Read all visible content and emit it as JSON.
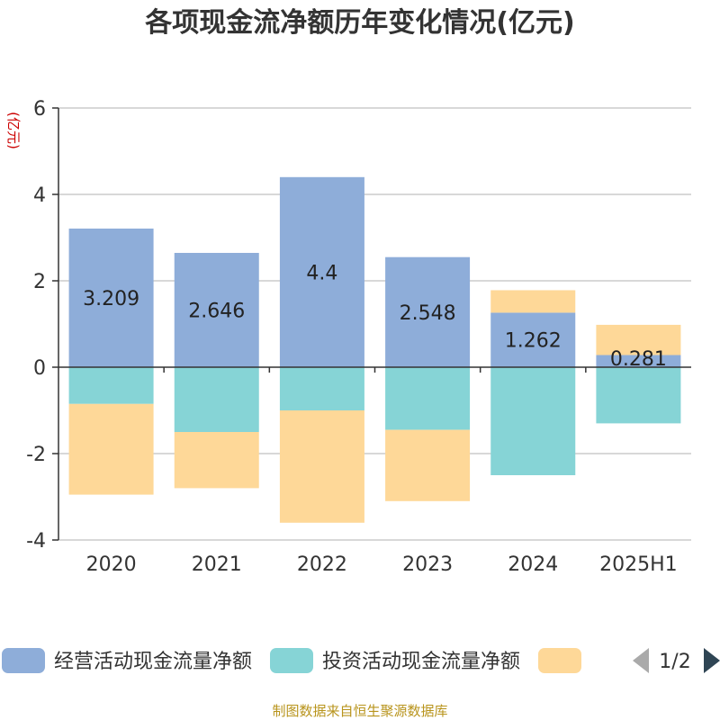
{
  "chart_data": {
    "type": "bar",
    "stacked": true,
    "title": "各项现金流净额历年变化情况(亿元)",
    "ylabel": "(亿元)",
    "categories": [
      "2020",
      "2021",
      "2022",
      "2023",
      "2024",
      "2025H1"
    ],
    "ylim": [
      -4,
      6
    ],
    "yticks": [
      6,
      4,
      2,
      0,
      -2,
      -4
    ],
    "grid": true,
    "series": [
      {
        "name": "经营活动现金流量净额",
        "color": "#8eadd9",
        "values": [
          3.209,
          2.646,
          4.4,
          2.548,
          1.262,
          0.281
        ],
        "labels": [
          "3.209",
          "2.646",
          "4.4",
          "2.548",
          "1.262",
          "0.281"
        ]
      },
      {
        "name": "投资活动现金流量净额",
        "color": "#86d4d6",
        "values": [
          -0.85,
          -1.5,
          -1.0,
          -1.45,
          -2.5,
          -1.3
        ]
      },
      {
        "name": "",
        "color": "#fed898",
        "values": [
          -2.1,
          -1.3,
          -2.6,
          -1.65,
          0.52,
          0.7
        ]
      }
    ],
    "legend": {
      "position": "bottom",
      "page": "1/2"
    },
    "source": "制图数据来自恒生聚源数据库"
  }
}
